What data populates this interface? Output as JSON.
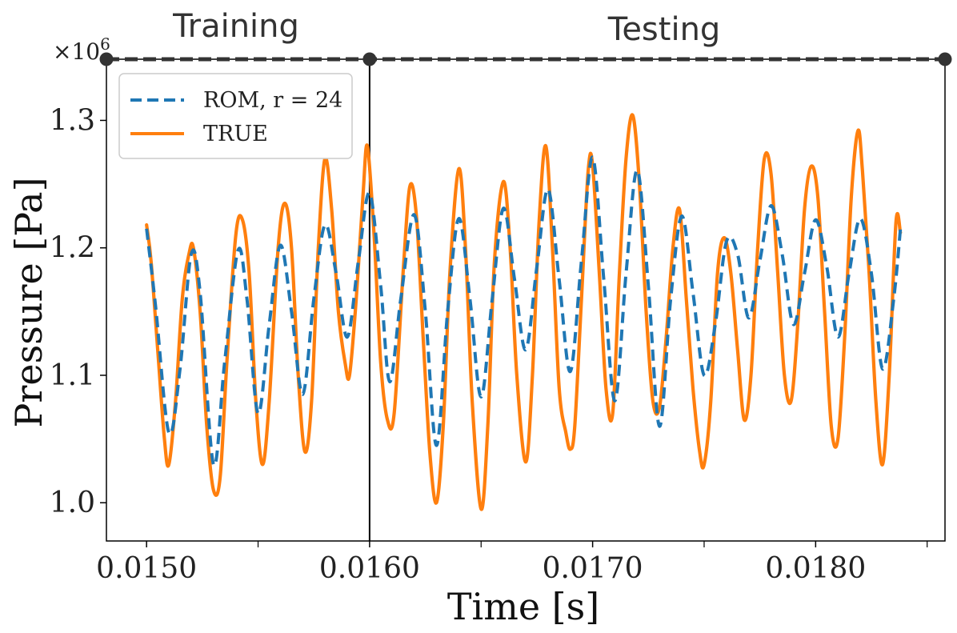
{
  "chart_data": {
    "type": "line",
    "xlabel": "Time [s]",
    "ylabel": "Pressure [Pa]",
    "y_multiplier": "×10",
    "y_multiplier_exp": "6",
    "xlim": [
      0.01482,
      0.01858
    ],
    "ylim": [
      0.97,
      1.348
    ],
    "x_ticks": [
      0.015,
      0.016,
      0.017,
      0.018
    ],
    "x_tick_labels": [
      "0.0150",
      "0.0160",
      "0.0170",
      "0.0180"
    ],
    "x_minor_ticks": [
      0.0155,
      0.0165,
      0.0175,
      0.0185
    ],
    "y_ticks": [
      1.0,
      1.1,
      1.2,
      1.3
    ],
    "y_tick_labels": [
      "1.0",
      "1.1",
      "1.2",
      "1.3"
    ],
    "train_test_split": 0.016,
    "phases": [
      {
        "label": "Training",
        "x_start": 0.01482,
        "x_end": 0.016
      },
      {
        "label": "Testing",
        "x_start": 0.016,
        "x_end": 0.01858
      }
    ],
    "legend": {
      "position": "top-left"
    },
    "series": [
      {
        "name": "ROM, r = 24",
        "color": "#1f77b4",
        "style": "dashed",
        "points": [
          [
            0.015,
            1.215
          ],
          [
            0.01504,
            1.155
          ],
          [
            0.0151,
            1.055
          ],
          [
            0.01515,
            1.105
          ],
          [
            0.0152,
            1.195
          ],
          [
            0.01524,
            1.165
          ],
          [
            0.0153,
            1.03
          ],
          [
            0.01535,
            1.11
          ],
          [
            0.01541,
            1.198
          ],
          [
            0.01545,
            1.16
          ],
          [
            0.0155,
            1.07
          ],
          [
            0.01555,
            1.14
          ],
          [
            0.0156,
            1.202
          ],
          [
            0.01565,
            1.15
          ],
          [
            0.0157,
            1.085
          ],
          [
            0.01575,
            1.16
          ],
          [
            0.0158,
            1.218
          ],
          [
            0.01585,
            1.18
          ],
          [
            0.0159,
            1.13
          ],
          [
            0.01595,
            1.19
          ],
          [
            0.016,
            1.243
          ],
          [
            0.01605,
            1.17
          ],
          [
            0.01609,
            1.095
          ],
          [
            0.01614,
            1.16
          ],
          [
            0.0162,
            1.226
          ],
          [
            0.01625,
            1.15
          ],
          [
            0.0163,
            1.045
          ],
          [
            0.01635,
            1.15
          ],
          [
            0.0164,
            1.223
          ],
          [
            0.01645,
            1.16
          ],
          [
            0.0165,
            1.083
          ],
          [
            0.01655,
            1.16
          ],
          [
            0.0166,
            1.231
          ],
          [
            0.01665,
            1.175
          ],
          [
            0.0167,
            1.12
          ],
          [
            0.01675,
            1.185
          ],
          [
            0.0168,
            1.246
          ],
          [
            0.01685,
            1.175
          ],
          [
            0.0169,
            1.103
          ],
          [
            0.01695,
            1.19
          ],
          [
            0.017,
            1.271
          ],
          [
            0.01705,
            1.175
          ],
          [
            0.0171,
            1.08
          ],
          [
            0.01715,
            1.18
          ],
          [
            0.0172,
            1.261
          ],
          [
            0.01725,
            1.17
          ],
          [
            0.0173,
            1.06
          ],
          [
            0.01735,
            1.16
          ],
          [
            0.0174,
            1.225
          ],
          [
            0.01745,
            1.165
          ],
          [
            0.0175,
            1.1
          ],
          [
            0.01755,
            1.14
          ],
          [
            0.0176,
            1.205
          ],
          [
            0.01765,
            1.195
          ],
          [
            0.0177,
            1.145
          ],
          [
            0.01775,
            1.19
          ],
          [
            0.0178,
            1.233
          ],
          [
            0.01785,
            1.195
          ],
          [
            0.0179,
            1.14
          ],
          [
            0.01795,
            1.18
          ],
          [
            0.018,
            1.222
          ],
          [
            0.01805,
            1.185
          ],
          [
            0.0181,
            1.13
          ],
          [
            0.01815,
            1.18
          ],
          [
            0.0182,
            1.223
          ],
          [
            0.01825,
            1.18
          ],
          [
            0.0183,
            1.105
          ],
          [
            0.01835,
            1.16
          ],
          [
            0.01838,
            1.215
          ]
        ]
      },
      {
        "name": "TRUE",
        "color": "#ff7f0e",
        "style": "solid",
        "points": [
          [
            0.015,
            1.218
          ],
          [
            0.01502,
            1.19
          ],
          [
            0.01505,
            1.12
          ],
          [
            0.01508,
            1.05
          ],
          [
            0.0151,
            1.03
          ],
          [
            0.01513,
            1.08
          ],
          [
            0.01516,
            1.16
          ],
          [
            0.01519,
            1.195
          ],
          [
            0.01521,
            1.2
          ],
          [
            0.01524,
            1.15
          ],
          [
            0.01527,
            1.06
          ],
          [
            0.0153,
            1.01
          ],
          [
            0.01533,
            1.02
          ],
          [
            0.01536,
            1.11
          ],
          [
            0.0154,
            1.21
          ],
          [
            0.01543,
            1.222
          ],
          [
            0.01546,
            1.18
          ],
          [
            0.01549,
            1.08
          ],
          [
            0.01552,
            1.03
          ],
          [
            0.01555,
            1.08
          ],
          [
            0.01559,
            1.2
          ],
          [
            0.01562,
            1.235
          ],
          [
            0.01565,
            1.2
          ],
          [
            0.01568,
            1.1
          ],
          [
            0.01571,
            1.04
          ],
          [
            0.01574,
            1.08
          ],
          [
            0.01577,
            1.2
          ],
          [
            0.0158,
            1.27
          ],
          [
            0.01583,
            1.23
          ],
          [
            0.01586,
            1.15
          ],
          [
            0.01589,
            1.11
          ],
          [
            0.01591,
            1.1
          ],
          [
            0.01594,
            1.16
          ],
          [
            0.01597,
            1.24
          ],
          [
            0.01599,
            1.28
          ],
          [
            0.01602,
            1.21
          ],
          [
            0.01605,
            1.11
          ],
          [
            0.01608,
            1.065
          ],
          [
            0.01611,
            1.07
          ],
          [
            0.01615,
            1.18
          ],
          [
            0.01618,
            1.248
          ],
          [
            0.01621,
            1.225
          ],
          [
            0.01624,
            1.13
          ],
          [
            0.01627,
            1.04
          ],
          [
            0.0163,
            1.0
          ],
          [
            0.01633,
            1.06
          ],
          [
            0.01636,
            1.18
          ],
          [
            0.0164,
            1.262
          ],
          [
            0.01643,
            1.2
          ],
          [
            0.01646,
            1.08
          ],
          [
            0.0165,
            0.995
          ],
          [
            0.01653,
            1.06
          ],
          [
            0.01656,
            1.19
          ],
          [
            0.0166,
            1.252
          ],
          [
            0.01663,
            1.2
          ],
          [
            0.01666,
            1.1
          ],
          [
            0.0167,
            1.032
          ],
          [
            0.01673,
            1.1
          ],
          [
            0.01676,
            1.22
          ],
          [
            0.01679,
            1.28
          ],
          [
            0.01682,
            1.2
          ],
          [
            0.01685,
            1.09
          ],
          [
            0.01688,
            1.055
          ],
          [
            0.0169,
            1.042
          ],
          [
            0.01692,
            1.06
          ],
          [
            0.01695,
            1.16
          ],
          [
            0.01698,
            1.26
          ],
          [
            0.017,
            1.265
          ],
          [
            0.01703,
            1.18
          ],
          [
            0.01706,
            1.09
          ],
          [
            0.01709,
            1.07
          ],
          [
            0.01712,
            1.18
          ],
          [
            0.01715,
            1.27
          ],
          [
            0.01718,
            1.304
          ],
          [
            0.01721,
            1.25
          ],
          [
            0.01724,
            1.15
          ],
          [
            0.01727,
            1.08
          ],
          [
            0.0173,
            1.075
          ],
          [
            0.01733,
            1.13
          ],
          [
            0.01736,
            1.2
          ],
          [
            0.01739,
            1.23
          ],
          [
            0.01742,
            1.16
          ],
          [
            0.01745,
            1.09
          ],
          [
            0.01748,
            1.04
          ],
          [
            0.0175,
            1.03
          ],
          [
            0.01753,
            1.08
          ],
          [
            0.01756,
            1.18
          ],
          [
            0.01759,
            1.208
          ],
          [
            0.01762,
            1.18
          ],
          [
            0.01765,
            1.12
          ],
          [
            0.01768,
            1.065
          ],
          [
            0.01771,
            1.1
          ],
          [
            0.01774,
            1.2
          ],
          [
            0.01777,
            1.27
          ],
          [
            0.0178,
            1.258
          ],
          [
            0.01783,
            1.18
          ],
          [
            0.01786,
            1.1
          ],
          [
            0.01789,
            1.08
          ],
          [
            0.01792,
            1.14
          ],
          [
            0.01795,
            1.23
          ],
          [
            0.01798,
            1.264
          ],
          [
            0.01801,
            1.24
          ],
          [
            0.01804,
            1.15
          ],
          [
            0.01807,
            1.06
          ],
          [
            0.0181,
            1.05
          ],
          [
            0.01813,
            1.13
          ],
          [
            0.01816,
            1.24
          ],
          [
            0.01819,
            1.292
          ],
          [
            0.01821,
            1.26
          ],
          [
            0.01824,
            1.18
          ],
          [
            0.01827,
            1.08
          ],
          [
            0.0183,
            1.03
          ],
          [
            0.01833,
            1.1
          ],
          [
            0.01836,
            1.22
          ],
          [
            0.01838,
            1.212
          ]
        ]
      }
    ]
  }
}
